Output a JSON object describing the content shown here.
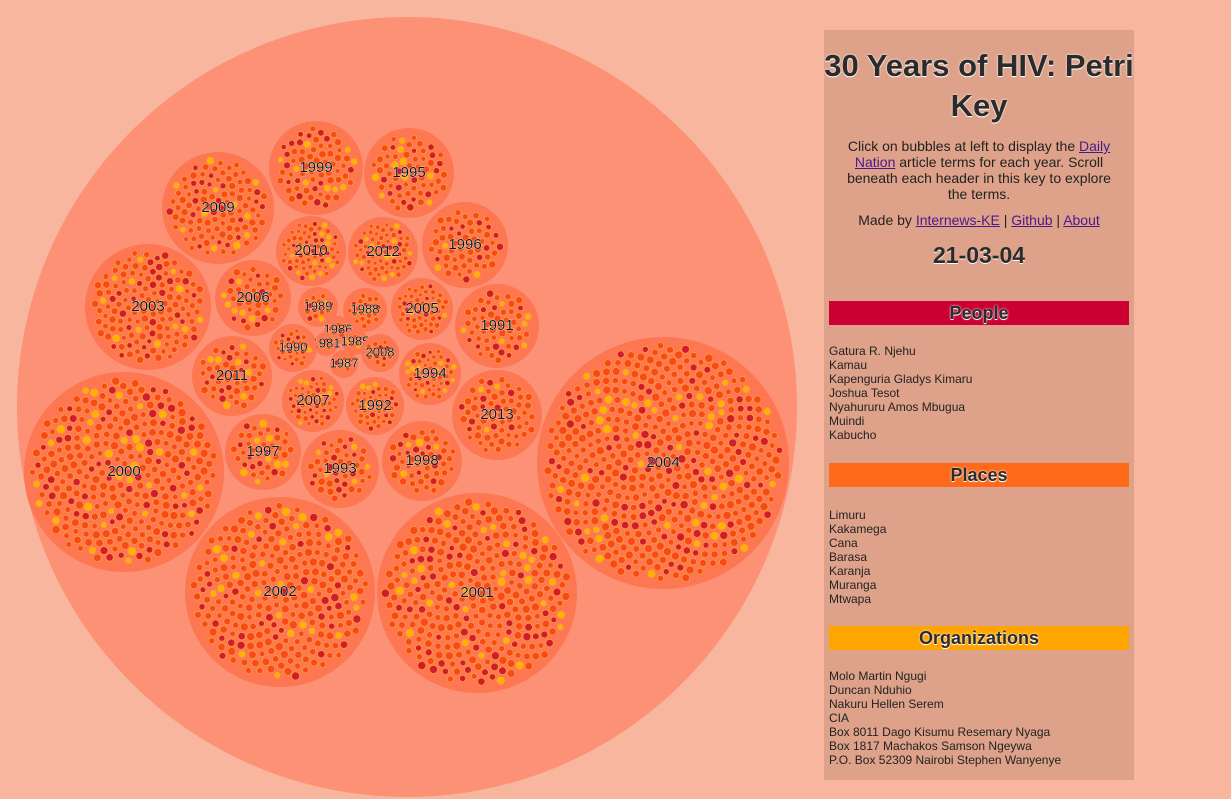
{
  "key": {
    "title": "30 Years of HIV: Petri Key",
    "intro_prefix": "Click on bubbles at left to display the ",
    "intro_link": "Daily Nation",
    "intro_suffix": " article terms for each year. Scroll beneath each header in this key to explore the terms.",
    "credits_prefix": "Made by ",
    "credits_links": [
      "Internews-KE",
      "Github",
      "About"
    ],
    "credits_sep": " | ",
    "date": "21-03-04",
    "sections": [
      {
        "name": "People",
        "color": "#cc0033",
        "terms": [
          "Gatura R. Njehu",
          "Kamau",
          "Kapenguria Gladys Kimaru",
          "Joshua Tesot",
          "Nyahururu Amos Mbugua",
          "Muindi",
          "Kabucho"
        ]
      },
      {
        "name": "Places",
        "color": "#ff6a1a",
        "terms": [
          "Limuru",
          "Kakamega",
          "Cana",
          "Barasa",
          "Karanja",
          "Muranga",
          "Mtwapa"
        ]
      },
      {
        "name": "Organizations",
        "color": "#ffa500",
        "terms": [
          "Molo Martin Ngugi",
          "Duncan Nduhio",
          "Nakuru Hellen Serem",
          "CIA",
          "Box 8011 Dago Kisumu Resemary Nyaga",
          "Box 1817 Machakos Samson Ngeywa",
          "P.O. Box 52309 Nairobi Stephen Wanyenye"
        ]
      }
    ]
  },
  "bubbles": {
    "years": [
      "2000",
      "2001",
      "2002",
      "2003",
      "2004",
      "2009",
      "1999",
      "1995",
      "1996",
      "2010",
      "2012",
      "2006",
      "1989",
      "1988",
      "2005",
      "1991",
      "1986",
      "1985",
      "1981",
      "1990",
      "1987",
      "2008",
      "2011",
      "1994",
      "2007",
      "1992",
      "2013",
      "1997",
      "1993",
      "1998"
    ]
  },
  "colors": {
    "background": "#f7b69d",
    "outer_circle": "#fd9175",
    "year_circle": "#fd7752",
    "term_fill": "#f84a18",
    "term_highlight": "#ffb300",
    "term_dark": "#d01c2c"
  }
}
